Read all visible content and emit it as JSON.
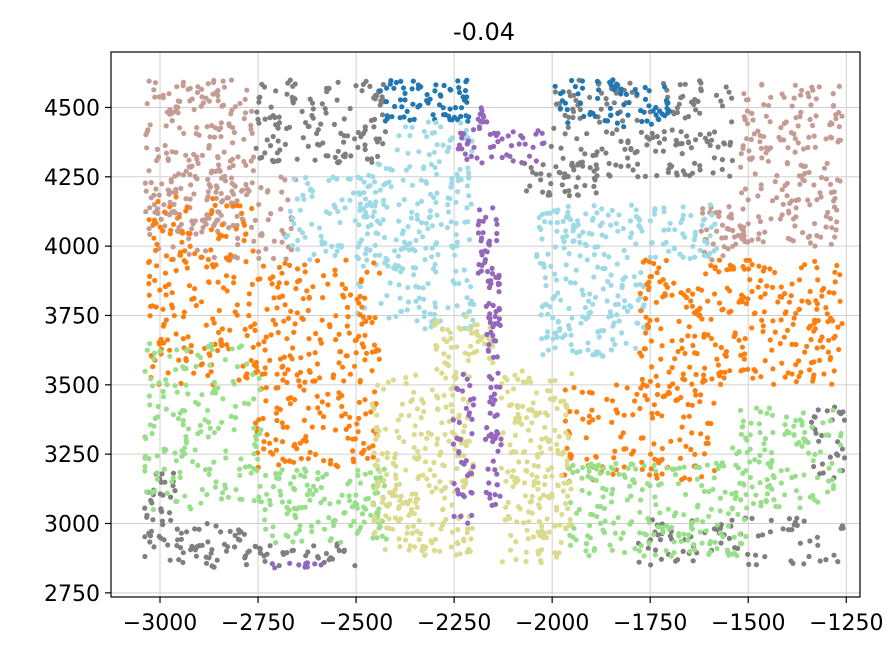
{
  "chart_data": {
    "type": "scatter",
    "title": "-0.04",
    "xlabel": "",
    "ylabel": "",
    "xlim": [
      -3125,
      -1215
    ],
    "ylim": [
      2735,
      4700
    ],
    "xticks": [
      -3000,
      -2750,
      -2500,
      -2250,
      -2000,
      -1750,
      -1500,
      -1250
    ],
    "xtick_labels": [
      "−3000",
      "−2750",
      "−2500",
      "−2250",
      "−2000",
      "−1750",
      "−1500",
      "−1250"
    ],
    "yticks": [
      2750,
      3000,
      3250,
      3500,
      3750,
      4000,
      4250,
      4500
    ],
    "ytick_labels": [
      "2750",
      "3000",
      "3250",
      "3500",
      "3750",
      "4000",
      "4250",
      "4500"
    ],
    "grid": true,
    "legend": "none",
    "series": [
      {
        "color": "#c49c94",
        "clusters": [
          {
            "x": [
              -3040,
              -2760
            ],
            "y": [
              4050,
              4600
            ],
            "n": 210
          },
          {
            "x": [
              -3030,
              -2650
            ],
            "y": [
              3950,
              4250
            ],
            "n": 90
          },
          {
            "x": [
              -1520,
              -1260
            ],
            "y": [
              4000,
              4600
            ],
            "n": 190
          },
          {
            "x": [
              -1620,
              -1500
            ],
            "y": [
              3950,
              4150
            ],
            "n": 40
          }
        ]
      },
      {
        "color": "#7f7f7f",
        "clusters": [
          {
            "x": [
              -2760,
              -2420
            ],
            "y": [
              4300,
              4600
            ],
            "n": 130
          },
          {
            "x": [
              -2010,
              -1540
            ],
            "y": [
              4250,
              4600
            ],
            "n": 180
          },
          {
            "x": [
              -2080,
              -1880
            ],
            "y": [
              4180,
              4300
            ],
            "n": 40
          },
          {
            "x": [
              -3040,
              -2960
            ],
            "y": [
              2850,
              3200
            ],
            "n": 40
          },
          {
            "x": [
              -2960,
              -2780
            ],
            "y": [
              2840,
              3000
            ],
            "n": 45
          },
          {
            "x": [
              -2780,
              -2500
            ],
            "y": [
              2840,
              2930
            ],
            "n": 35
          },
          {
            "x": [
              -1780,
              -1250
            ],
            "y": [
              2850,
              3020
            ],
            "n": 80
          },
          {
            "x": [
              -1340,
              -1250
            ],
            "y": [
              3150,
              3420
            ],
            "n": 30
          }
        ]
      },
      {
        "color": "#1f77b4",
        "clusters": [
          {
            "x": [
              -2440,
              -2210
            ],
            "y": [
              4450,
              4600
            ],
            "n": 70
          },
          {
            "x": [
              -2000,
              -1700
            ],
            "y": [
              4430,
              4600
            ],
            "n": 70
          }
        ]
      },
      {
        "color": "#9edae5",
        "clusters": [
          {
            "x": [
              -2500,
              -2200
            ],
            "y": [
              3700,
              4300
            ],
            "n": 220
          },
          {
            "x": [
              -2040,
              -1760
            ],
            "y": [
              3600,
              4150
            ],
            "n": 210
          },
          {
            "x": [
              -2680,
              -2450
            ],
            "y": [
              3950,
              4250
            ],
            "n": 70
          },
          {
            "x": [
              -1760,
              -1580
            ],
            "y": [
              3950,
              4150
            ],
            "n": 50
          },
          {
            "x": [
              -2400,
              -2200
            ],
            "y": [
              4300,
              4450
            ],
            "n": 30
          }
        ]
      },
      {
        "color": "#ff7f0e",
        "clusters": [
          {
            "x": [
              -3030,
              -2760
            ],
            "y": [
              3500,
              4180
            ],
            "n": 180
          },
          {
            "x": [
              -2760,
              -2440
            ],
            "y": [
              3200,
              3950
            ],
            "n": 260
          },
          {
            "x": [
              -1780,
              -1260
            ],
            "y": [
              3500,
              3950
            ],
            "n": 280
          },
          {
            "x": [
              -1970,
              -1580
            ],
            "y": [
              3150,
              3500
            ],
            "n": 130
          }
        ]
      },
      {
        "color": "#98df8a",
        "clusters": [
          {
            "x": [
              -3040,
              -2740
            ],
            "y": [
              3050,
              3650
            ],
            "n": 170
          },
          {
            "x": [
              -2740,
              -2420
            ],
            "y": [
              2930,
              3200
            ],
            "n": 130
          },
          {
            "x": [
              -1960,
              -1500
            ],
            "y": [
              2880,
              3220
            ],
            "n": 200
          },
          {
            "x": [
              -1540,
              -1260
            ],
            "y": [
              3050,
              3420
            ],
            "n": 120
          }
        ]
      },
      {
        "color": "#dbdb8d",
        "clusters": [
          {
            "x": [
              -2460,
              -2200
            ],
            "y": [
              2880,
              3550
            ],
            "n": 240
          },
          {
            "x": [
              -2130,
              -1950
            ],
            "y": [
              2850,
              3550
            ],
            "n": 190
          },
          {
            "x": [
              -2300,
              -2150
            ],
            "y": [
              3550,
              3750
            ],
            "n": 50
          }
        ]
      },
      {
        "color": "#9467bd",
        "clusters": [
          {
            "x": [
              -2170,
              -2130
            ],
            "y": [
              3050,
              3900
            ],
            "n": 80
          },
          {
            "x": [
              -2255,
              -2200
            ],
            "y": [
              3000,
              3550
            ],
            "n": 40
          },
          {
            "x": [
              -2190,
              -2140
            ],
            "y": [
              3900,
              4150
            ],
            "n": 30
          },
          {
            "x": [
              -2240,
              -2020
            ],
            "y": [
              4300,
              4420
            ],
            "n": 45
          },
          {
            "x": [
              -2190,
              -2160
            ],
            "y": [
              4420,
              4500
            ],
            "n": 12
          },
          {
            "x": [
              -2720,
              -2570
            ],
            "y": [
              2830,
              2860
            ],
            "n": 10
          }
        ]
      }
    ]
  }
}
